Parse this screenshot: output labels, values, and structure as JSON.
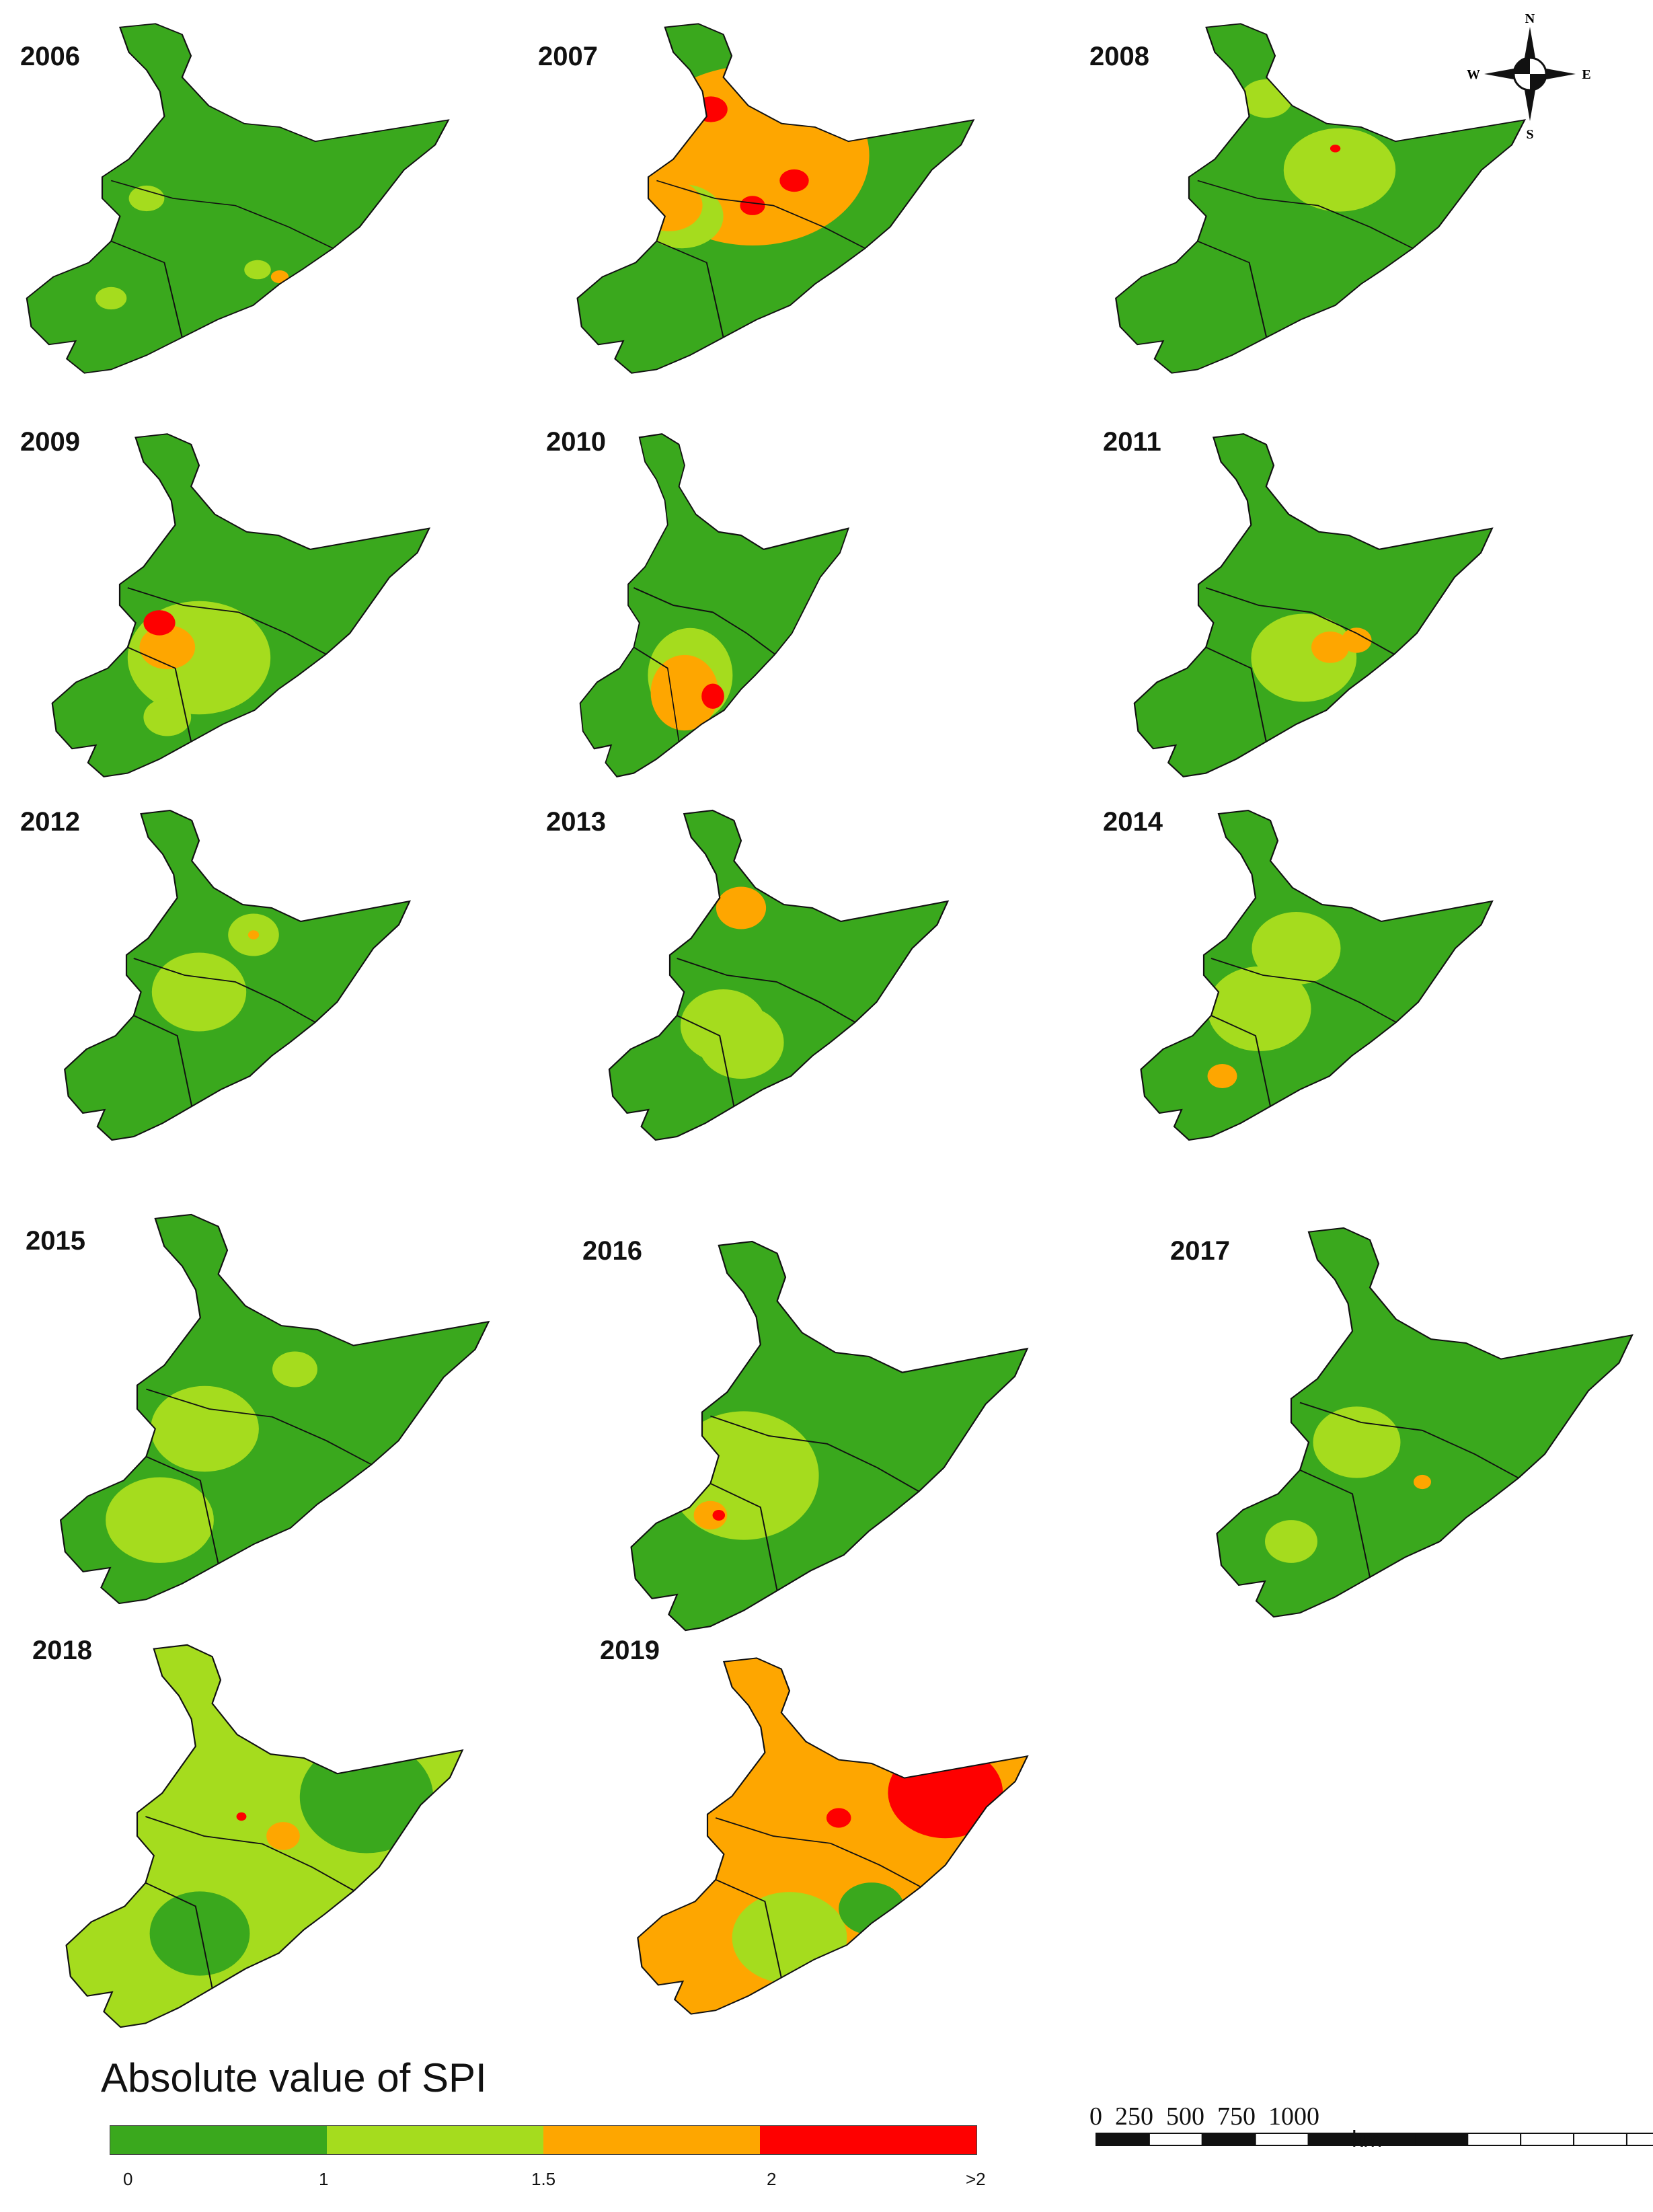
{
  "figure": {
    "years": [
      "2006",
      "2007",
      "2008",
      "2009",
      "2010",
      "2011",
      "2012",
      "2013",
      "2014",
      "2015",
      "2016",
      "2017",
      "2018",
      "2019"
    ],
    "classes": {
      "c0": "#3aa81d",
      "c1": "#a5dc1e",
      "c15": "#fea600",
      "c2": "#fe0000"
    },
    "maps": [
      {
        "year": "2006",
        "base": "c0",
        "patches": [
          {
            "c": "c1",
            "r": 0.04
          },
          {
            "c": "c1",
            "r": 0.03
          },
          {
            "c": "c15",
            "r": 0.02
          },
          {
            "c": "c1",
            "r": 0.035
          },
          {
            "c": "c15",
            "r": 0.02
          }
        ]
      },
      {
        "year": "2007",
        "base": "c0",
        "patches": [
          {
            "c": "c15",
            "r": 0.28
          },
          {
            "c": "c2",
            "r": 0.04
          },
          {
            "c": "c2",
            "r": 0.035
          },
          {
            "c": "c2",
            "r": 0.03
          },
          {
            "c": "c1",
            "r": 0.1
          },
          {
            "c": "c15",
            "r": 0.08
          }
        ]
      },
      {
        "year": "2008",
        "base": "c0",
        "patches": [
          {
            "c": "c1",
            "r": 0.13
          },
          {
            "c": "c1",
            "r": 0.06
          },
          {
            "c": "c2",
            "r": 0.012
          }
        ]
      },
      {
        "year": "2009",
        "base": "c0",
        "patches": [
          {
            "c": "c1",
            "r": 0.18
          },
          {
            "c": "c15",
            "r": 0.07
          },
          {
            "c": "c2",
            "r": 0.04
          },
          {
            "c": "c1",
            "r": 0.06
          }
        ]
      },
      {
        "year": "2010",
        "base": "c0",
        "patches": [
          {
            "c": "c1",
            "r": 0.15
          },
          {
            "c": "c15",
            "r": 0.12
          },
          {
            "c": "c2",
            "r": 0.04
          }
        ]
      },
      {
        "year": "2011",
        "base": "c0",
        "patches": [
          {
            "c": "c1",
            "r": 0.14
          },
          {
            "c": "c15",
            "r": 0.05
          },
          {
            "c": "c15",
            "r": 0.04
          }
        ]
      },
      {
        "year": "2012",
        "base": "c0",
        "patches": [
          {
            "c": "c1",
            "r": 0.13
          },
          {
            "c": "c1",
            "r": 0.07
          },
          {
            "c": "c15",
            "r": 0.015
          }
        ]
      },
      {
        "year": "2013",
        "base": "c0",
        "patches": [
          {
            "c": "c1",
            "r": 0.12
          },
          {
            "c": "c15",
            "r": 0.07
          },
          {
            "c": "c1",
            "r": 0.12
          }
        ]
      },
      {
        "year": "2014",
        "base": "c0",
        "patches": [
          {
            "c": "c1",
            "r": 0.14
          },
          {
            "c": "c1",
            "r": 0.12
          },
          {
            "c": "c15",
            "r": 0.04
          }
        ]
      },
      {
        "year": "2015",
        "base": "c0",
        "patches": [
          {
            "c": "c1",
            "r": 0.12
          },
          {
            "c": "c1",
            "r": 0.12
          },
          {
            "c": "c1",
            "r": 0.05
          }
        ]
      },
      {
        "year": "2016",
        "base": "c0",
        "patches": [
          {
            "c": "c1",
            "r": 0.18
          },
          {
            "c": "c15",
            "r": 0.04
          },
          {
            "c": "c2",
            "r": 0.015
          }
        ]
      },
      {
        "year": "2017",
        "base": "c0",
        "patches": [
          {
            "c": "c1",
            "r": 0.1
          },
          {
            "c": "c1",
            "r": 0.06
          },
          {
            "c": "c15",
            "r": 0.02
          }
        ]
      },
      {
        "year": "2018",
        "base": "c1",
        "patches": [
          {
            "c": "c0",
            "r": 0.16
          },
          {
            "c": "c0",
            "r": 0.12
          },
          {
            "c": "c15",
            "r": 0.05
          },
          {
            "c": "c15",
            "r": 0.04
          },
          {
            "c": "c2",
            "r": 0.012
          }
        ]
      },
      {
        "year": "2019",
        "base": "c15",
        "patches": [
          {
            "c": "c2",
            "r": 0.14
          },
          {
            "c": "c1",
            "r": 0.14
          },
          {
            "c": "c2",
            "r": 0.03
          },
          {
            "c": "c0",
            "r": 0.08
          }
        ]
      }
    ]
  },
  "compass": {
    "n": "N",
    "s": "S",
    "e": "E",
    "w": "W"
  },
  "legend": {
    "title": "Absolute value of SPI",
    "classes": [
      {
        "color": "#3aa81d"
      },
      {
        "color": "#a5dc1e"
      },
      {
        "color": "#fea600"
      },
      {
        "color": "#fe0000"
      }
    ],
    "ticks": [
      "0",
      "1",
      "1.5",
      "2",
      ">2"
    ]
  },
  "scalebar": {
    "numbers": [
      "0",
      "250",
      "500",
      "750",
      "1000"
    ],
    "unit": "km"
  }
}
